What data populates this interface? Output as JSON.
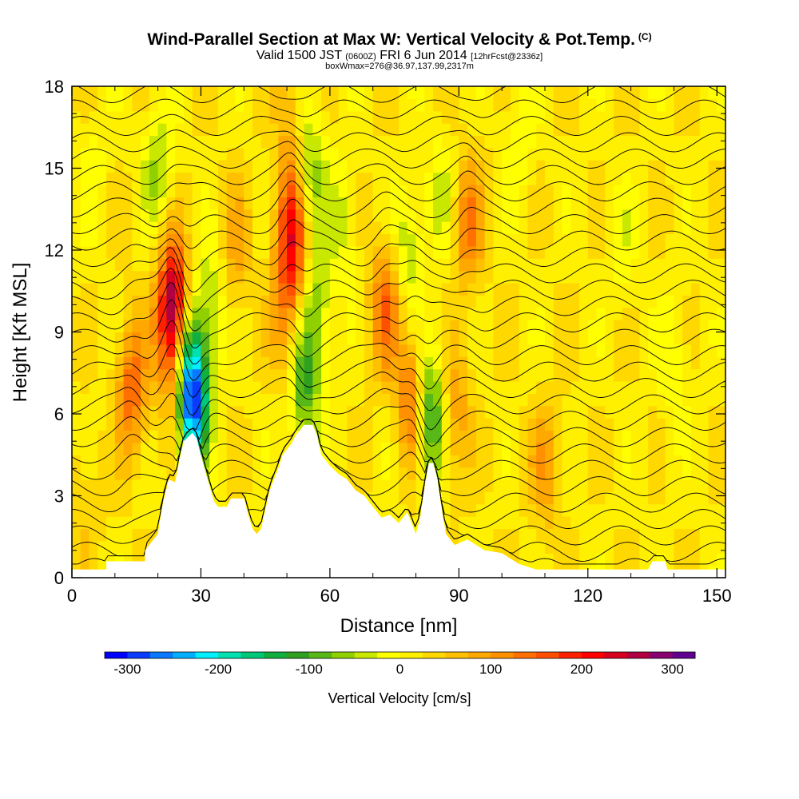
{
  "title": {
    "main": "Wind-Parallel Section at Max W: Vertical Velocity & Pot.Temp.",
    "copyright": "(C)",
    "valid_prefix": "Valid 1500 JST",
    "valid_utc": "(0600Z)",
    "valid_date": "FRI 6 Jun 2014",
    "forecast": "[12hrFcst@2336z]",
    "box_info": "boxWmax=276@36.97,137.99,2317m"
  },
  "chart_data": {
    "type": "heatmap",
    "xlabel": "Distance [nm]",
    "ylabel": "Height [Kft MSL]",
    "xlim": [
      0,
      152
    ],
    "ylim": [
      0,
      18
    ],
    "x_ticks": [
      "0",
      "30",
      "60",
      "90",
      "120",
      "150"
    ],
    "y_ticks": [
      "0",
      "3",
      "6",
      "9",
      "12",
      "15",
      "18"
    ],
    "terrain_profile": [
      [
        0,
        0.3
      ],
      [
        8,
        0.3
      ],
      [
        8,
        0.6
      ],
      [
        17,
        0.6
      ],
      [
        17,
        1.0
      ],
      [
        20,
        1.6
      ],
      [
        21,
        2.6
      ],
      [
        22.5,
        3.6
      ],
      [
        24,
        3.5
      ],
      [
        25,
        4.3
      ],
      [
        26,
        5.0
      ],
      [
        28,
        5.3
      ],
      [
        29,
        5.1
      ],
      [
        30,
        4.5
      ],
      [
        31,
        3.9
      ],
      [
        33,
        2.8
      ],
      [
        34,
        2.6
      ],
      [
        35,
        2.6
      ],
      [
        36,
        2.6
      ],
      [
        37,
        2.9
      ],
      [
        40,
        2.9
      ],
      [
        41,
        2.3
      ],
      [
        42,
        1.8
      ],
      [
        43,
        1.6
      ],
      [
        44,
        1.8
      ],
      [
        45,
        2.5
      ],
      [
        46,
        3.2
      ],
      [
        47,
        3.6
      ],
      [
        48,
        4.0
      ],
      [
        49,
        4.5
      ],
      [
        51,
        4.9
      ],
      [
        52,
        5.2
      ],
      [
        54,
        5.6
      ],
      [
        56,
        5.6
      ],
      [
        57,
        5.2
      ],
      [
        58,
        4.5
      ],
      [
        60,
        4.1
      ],
      [
        62,
        3.8
      ],
      [
        64,
        3.6
      ],
      [
        66,
        3.2
      ],
      [
        68,
        3.0
      ],
      [
        70,
        2.6
      ],
      [
        72,
        2.2
      ],
      [
        74,
        2.3
      ],
      [
        76,
        2.0
      ],
      [
        78,
        2.4
      ],
      [
        79,
        2.0
      ],
      [
        80,
        1.6
      ],
      [
        81,
        2.2
      ],
      [
        82,
        3.3
      ],
      [
        83,
        4.2
      ],
      [
        84,
        4.2
      ],
      [
        85,
        3.6
      ],
      [
        86,
        2.5
      ],
      [
        87,
        1.6
      ],
      [
        89,
        1.2
      ],
      [
        92,
        1.4
      ],
      [
        94,
        1.2
      ],
      [
        96,
        1.0
      ],
      [
        100,
        0.9
      ],
      [
        104,
        0.5
      ],
      [
        108,
        0.3
      ],
      [
        120,
        0.3
      ],
      [
        134,
        0.3
      ],
      [
        135,
        0.6
      ],
      [
        138,
        0.6
      ],
      [
        138.5,
        0.3
      ],
      [
        152,
        0.3
      ]
    ],
    "w_features_cm_s": [
      {
        "x": 23.5,
        "y": 10.0,
        "w": 260
      },
      {
        "x": 24.5,
        "y": 7.5,
        "w": 160
      },
      {
        "x": 28.0,
        "y": 6.5,
        "w": -300
      },
      {
        "x": 26.0,
        "y": 7.8,
        "w": -160
      },
      {
        "x": 32.0,
        "y": 10.0,
        "w": -70
      },
      {
        "x": 20.0,
        "y": 15.0,
        "w": -70
      },
      {
        "x": 14.0,
        "y": 7.0,
        "w": 130
      },
      {
        "x": 38.0,
        "y": 12.0,
        "w": 60
      },
      {
        "x": 51.0,
        "y": 12.5,
        "w": 180
      },
      {
        "x": 50.0,
        "y": 9.5,
        "w": 80
      },
      {
        "x": 51.0,
        "y": 16.5,
        "w": 60
      },
      {
        "x": 55.5,
        "y": 15.0,
        "w": -90
      },
      {
        "x": 57.0,
        "y": 10.0,
        "w": -80
      },
      {
        "x": 54.0,
        "y": 7.0,
        "w": -120
      },
      {
        "x": 63.0,
        "y": 13.0,
        "w": -50
      },
      {
        "x": 73.0,
        "y": 10.0,
        "w": 130
      },
      {
        "x": 78.0,
        "y": 12.0,
        "w": -70
      },
      {
        "x": 79.5,
        "y": 6.5,
        "w": 150
      },
      {
        "x": 83.0,
        "y": 6.0,
        "w": -180
      },
      {
        "x": 86.0,
        "y": 14.0,
        "w": -50
      },
      {
        "x": 92.0,
        "y": 13.0,
        "w": 110
      },
      {
        "x": 89.0,
        "y": 6.0,
        "w": 80
      },
      {
        "x": 110.0,
        "y": 4.0,
        "w": 70
      },
      {
        "x": 104.0,
        "y": 16.0,
        "w": -40
      },
      {
        "x": 128.0,
        "y": 12.0,
        "w": -30
      },
      {
        "x": 140.0,
        "y": 8.0,
        "w": -40
      },
      {
        "x": 5.0,
        "y": 15.0,
        "w": -30
      },
      {
        "x": 3.0,
        "y": 3.0,
        "w": 30
      }
    ]
  },
  "colorbar": {
    "title": "Vertical Velocity [cm/s]",
    "labels": [
      "-300",
      "-200",
      "-100",
      "0",
      "100",
      "200",
      "300"
    ],
    "min": -325,
    "max": 325,
    "step": 25,
    "colors": [
      "#0000ff",
      "#0a3cff",
      "#0a78ff",
      "#00b0ff",
      "#00f0ff",
      "#00e0b0",
      "#00c878",
      "#10b040",
      "#30a020",
      "#58b818",
      "#90d000",
      "#c8e800",
      "#ffff00",
      "#fff000",
      "#ffd800",
      "#ffc000",
      "#ffa800",
      "#ff9000",
      "#ff7000",
      "#ff5000",
      "#ff2000",
      "#ff0000",
      "#d80020",
      "#b00040",
      "#880070",
      "#600090"
    ]
  }
}
